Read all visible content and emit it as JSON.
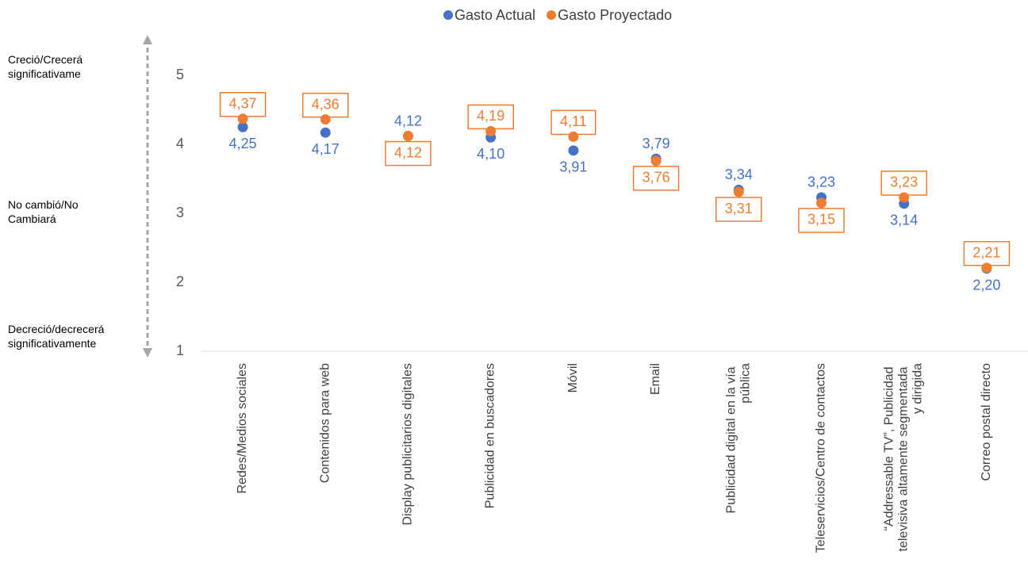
{
  "chart_data": {
    "type": "dot",
    "annotations": [
      "Creció/Crecerá significativame",
      "No cambió/No Cambiará",
      "Decreció/decrecerá significativamente"
    ],
    "categories": [
      "Redes/Medios sociales",
      "Contenidos para web",
      "Display publicitarios digitales",
      "Publicidad en buscadores",
      "Móvil",
      "Email",
      "Publicidad digital en la vía pública",
      "Teleservicios/Centro de contactos",
      "“Addressable TV”, Publicidad televisiva altamente segmentada y dirigida",
      "Correo postal directo"
    ],
    "series": [
      {
        "name": "Gasto Actual",
        "color": "#4472c4",
        "values": [
          4.25,
          4.17,
          4.12,
          4.1,
          3.91,
          3.79,
          3.34,
          3.23,
          3.14,
          2.2
        ],
        "value_labels": [
          "4,25",
          "4,17",
          "4,12",
          "4,10",
          "3,91",
          "3,79",
          "3,34",
          "3,23",
          "3,14",
          "2,20"
        ]
      },
      {
        "name": "Gasto Proyectado",
        "color": "#ed7d31",
        "values": [
          4.37,
          4.36,
          4.12,
          4.19,
          4.11,
          3.76,
          3.31,
          3.15,
          3.23,
          2.21
        ],
        "value_labels": [
          "4,37",
          "4,36",
          "4,12",
          "4,19",
          "4,11",
          "3,76",
          "3,31",
          "3,15",
          "3,23",
          "2,21"
        ]
      }
    ],
    "ylim": [
      1,
      5
    ],
    "yticks": [
      1,
      2,
      3,
      4,
      5
    ],
    "grid": false
  }
}
